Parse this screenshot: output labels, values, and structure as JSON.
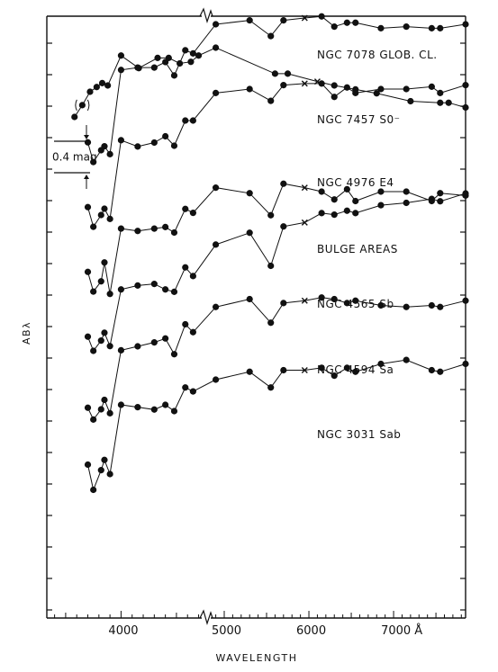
{
  "chart_data": {
    "type": "line",
    "xlabel": "WAVELENGTH",
    "ylabel": "ABλ",
    "xlim": [
      3300,
      7700
    ],
    "x_ticks": [
      {
        "value": 4000,
        "label": "4000"
      },
      {
        "value": 5000,
        "label": "5000"
      },
      {
        "value": 6000,
        "label": "6000"
      },
      {
        "value": 7000,
        "label": "7000 Å"
      }
    ],
    "x_axis_break": [
      4700,
      4850
    ],
    "scale_bar": {
      "label": "0.4 mag",
      "mag": 0.4
    },
    "marker_note": "x marks a point plotted as a cross; (•) marks a parenthesised point",
    "series": [
      {
        "name": "NGC 7078 GLOB. CL.",
        "offset": 0,
        "points": [
          [
            3580,
            3.0,
            "dot"
          ],
          [
            3650,
            2.85,
            "paren"
          ],
          [
            3720,
            2.68,
            "dot"
          ],
          [
            3780,
            2.62,
            "dot"
          ],
          [
            3830,
            2.57,
            "dot"
          ],
          [
            3880,
            2.6,
            "dot"
          ],
          [
            4000,
            2.22,
            "dot"
          ],
          [
            4160,
            2.38,
            "dot"
          ],
          [
            4330,
            2.25,
            "dot"
          ],
          [
            4430,
            2.25,
            "dot"
          ],
          [
            4530,
            2.32,
            "dot"
          ],
          [
            4630,
            2.3,
            "dot"
          ],
          [
            4700,
            2.22,
            "dot"
          ],
          [
            4900,
            2.12,
            "dot"
          ],
          [
            5600,
            2.45,
            "dot"
          ],
          [
            5750,
            2.45,
            "dot"
          ],
          [
            6100,
            2.55,
            "cross"
          ],
          [
            6300,
            2.6,
            "dot"
          ],
          [
            6550,
            2.65,
            "dot"
          ],
          [
            6800,
            2.7,
            "dot"
          ],
          [
            7200,
            2.8,
            "dot"
          ],
          [
            7550,
            2.82,
            "dot"
          ],
          [
            7650,
            2.82,
            "dot"
          ],
          [
            7850,
            2.88,
            "dot"
          ]
        ]
      },
      {
        "name": "NGC 7457 S0⁻",
        "offset": 1,
        "points": [
          [
            3700,
            2.5,
            "dot"
          ],
          [
            3750,
            2.75,
            "dot"
          ],
          [
            3820,
            2.6,
            "dot"
          ],
          [
            3850,
            2.55,
            "dot"
          ],
          [
            3900,
            2.65,
            "dot"
          ],
          [
            4000,
            1.58,
            "dot"
          ],
          [
            4150,
            1.55,
            "dot"
          ],
          [
            4300,
            1.55,
            "dot"
          ],
          [
            4400,
            1.48,
            "dot"
          ],
          [
            4480,
            1.65,
            "dot"
          ],
          [
            4580,
            1.33,
            "dot"
          ],
          [
            4650,
            1.37,
            "dot"
          ],
          [
            4900,
            1.0,
            "dot"
          ],
          [
            5300,
            0.95,
            "dot"
          ],
          [
            5550,
            1.15,
            "dot"
          ],
          [
            5700,
            0.95,
            "dot"
          ],
          [
            5950,
            0.92,
            "cross"
          ],
          [
            6150,
            0.9,
            "dot"
          ],
          [
            6300,
            1.03,
            "dot"
          ],
          [
            6450,
            0.98,
            "dot"
          ],
          [
            6550,
            0.98,
            "dot"
          ],
          [
            6850,
            1.05,
            "dot"
          ],
          [
            7150,
            1.03,
            "dot"
          ],
          [
            7450,
            1.05,
            "dot"
          ],
          [
            7550,
            1.05,
            "dot"
          ],
          [
            7850,
            1.0,
            "dot"
          ]
        ]
      },
      {
        "name": "NGC 4976 E4",
        "offset": 2,
        "points": [
          [
            3700,
            2.5,
            "dot"
          ],
          [
            3750,
            2.75,
            "dot"
          ],
          [
            3820,
            2.6,
            "dot"
          ],
          [
            3850,
            2.52,
            "dot"
          ],
          [
            3900,
            2.65,
            "dot"
          ],
          [
            4000,
            1.65,
            "dot"
          ],
          [
            4150,
            1.73,
            "dot"
          ],
          [
            4300,
            1.68,
            "dot"
          ],
          [
            4400,
            1.6,
            "dot"
          ],
          [
            4480,
            1.72,
            "dot"
          ],
          [
            4580,
            1.4,
            "dot"
          ],
          [
            4650,
            1.4,
            "dot"
          ],
          [
            4900,
            1.05,
            "dot"
          ],
          [
            5300,
            1.0,
            "dot"
          ],
          [
            5550,
            1.15,
            "dot"
          ],
          [
            5700,
            0.95,
            "dot"
          ],
          [
            5950,
            0.93,
            "cross"
          ],
          [
            6150,
            0.93,
            "dot"
          ],
          [
            6300,
            1.1,
            "dot"
          ],
          [
            6450,
            0.98,
            "dot"
          ],
          [
            6550,
            1.05,
            "dot"
          ],
          [
            6850,
            1.0,
            "dot"
          ],
          [
            7150,
            1.0,
            "dot"
          ],
          [
            7450,
            0.97,
            "dot"
          ],
          [
            7550,
            1.05,
            "dot"
          ],
          [
            7850,
            0.95,
            "dot"
          ]
        ]
      },
      {
        "name": "BULGE AREAS",
        "offset": 3,
        "points": [
          [
            3700,
            2.5,
            "dot"
          ],
          [
            3750,
            2.75,
            "dot"
          ],
          [
            3820,
            2.62,
            "dot"
          ],
          [
            3850,
            2.38,
            "dot"
          ],
          [
            3900,
            2.78,
            "dot"
          ],
          [
            4000,
            1.95,
            "dot"
          ],
          [
            4150,
            1.98,
            "dot"
          ],
          [
            4300,
            1.95,
            "dot"
          ],
          [
            4400,
            1.93,
            "dot"
          ],
          [
            4480,
            2.0,
            "dot"
          ],
          [
            4580,
            1.7,
            "dot"
          ],
          [
            4650,
            1.75,
            "dot"
          ],
          [
            4900,
            1.43,
            "dot"
          ],
          [
            5300,
            1.5,
            "dot"
          ],
          [
            5550,
            1.78,
            "dot"
          ],
          [
            5700,
            1.38,
            "dot"
          ],
          [
            5950,
            1.43,
            "cross"
          ],
          [
            6150,
            1.48,
            "dot"
          ],
          [
            6300,
            1.58,
            "dot"
          ],
          [
            6450,
            1.45,
            "dot"
          ],
          [
            6550,
            1.6,
            "dot"
          ],
          [
            6850,
            1.48,
            "dot"
          ],
          [
            7150,
            1.48,
            "dot"
          ],
          [
            7450,
            1.6,
            "dot"
          ],
          [
            7550,
            1.5,
            "dot"
          ],
          [
            7850,
            1.53,
            "dot"
          ]
        ]
      },
      {
        "name": "NGC 4565 Sb",
        "offset": 4,
        "points": [
          [
            3700,
            2.5,
            "dot"
          ],
          [
            3750,
            2.68,
            "dot"
          ],
          [
            3820,
            2.55,
            "dot"
          ],
          [
            3850,
            2.45,
            "dot"
          ],
          [
            3900,
            2.62,
            "dot"
          ],
          [
            4000,
            1.9,
            "dot"
          ],
          [
            4150,
            1.85,
            "dot"
          ],
          [
            4300,
            1.83,
            "dot"
          ],
          [
            4400,
            1.9,
            "dot"
          ],
          [
            4480,
            1.93,
            "dot"
          ],
          [
            4580,
            1.62,
            "dot"
          ],
          [
            4650,
            1.73,
            "dot"
          ],
          [
            4900,
            1.33,
            "dot"
          ],
          [
            5300,
            1.18,
            "dot"
          ],
          [
            5550,
            1.6,
            "dot"
          ],
          [
            5700,
            1.1,
            "dot"
          ],
          [
            5950,
            1.05,
            "cross"
          ],
          [
            6150,
            0.93,
            "dot"
          ],
          [
            6300,
            0.95,
            "dot"
          ],
          [
            6450,
            0.9,
            "dot"
          ],
          [
            6550,
            0.93,
            "dot"
          ],
          [
            6850,
            0.83,
            "dot"
          ],
          [
            7150,
            0.8,
            "dot"
          ],
          [
            7450,
            0.75,
            "dot"
          ],
          [
            7550,
            0.78,
            "dot"
          ],
          [
            7850,
            0.68,
            "dot"
          ]
        ]
      },
      {
        "name": "NGC 4594 Sa",
        "offset": 5,
        "points": [
          [
            3700,
            2.58,
            "dot"
          ],
          [
            3750,
            2.73,
            "dot"
          ],
          [
            3820,
            2.6,
            "dot"
          ],
          [
            3850,
            2.48,
            "dot"
          ],
          [
            3900,
            2.65,
            "dot"
          ],
          [
            4000,
            1.85,
            "dot"
          ],
          [
            4150,
            1.8,
            "dot"
          ],
          [
            4300,
            1.75,
            "dot"
          ],
          [
            4400,
            1.7,
            "dot"
          ],
          [
            4480,
            1.9,
            "dot"
          ],
          [
            4580,
            1.52,
            "dot"
          ],
          [
            4650,
            1.62,
            "dot"
          ],
          [
            4900,
            1.3,
            "dot"
          ],
          [
            5300,
            1.2,
            "dot"
          ],
          [
            5550,
            1.5,
            "dot"
          ],
          [
            5700,
            1.25,
            "dot"
          ],
          [
            5950,
            1.22,
            "cross"
          ],
          [
            6150,
            1.18,
            "dot"
          ],
          [
            6300,
            1.2,
            "dot"
          ],
          [
            6450,
            1.25,
            "dot"
          ],
          [
            6550,
            1.22,
            "dot"
          ],
          [
            6850,
            1.28,
            "dot"
          ],
          [
            7150,
            1.3,
            "dot"
          ],
          [
            7450,
            1.28,
            "dot"
          ],
          [
            7550,
            1.3,
            "dot"
          ],
          [
            7850,
            1.22,
            "dot"
          ]
        ]
      },
      {
        "name": "NGC 3031 Sab",
        "offset": 6,
        "points": [
          [
            3700,
            2.48,
            "dot"
          ],
          [
            3750,
            2.8,
            "dot"
          ],
          [
            3820,
            2.55,
            "dot"
          ],
          [
            3850,
            2.42,
            "dot"
          ],
          [
            3900,
            2.6,
            "dot"
          ],
          [
            4000,
            1.72,
            "dot"
          ],
          [
            4150,
            1.75,
            "dot"
          ],
          [
            4300,
            1.78,
            "dot"
          ],
          [
            4400,
            1.72,
            "dot"
          ],
          [
            4480,
            1.8,
            "dot"
          ],
          [
            4580,
            1.5,
            "dot"
          ],
          [
            4650,
            1.55,
            "dot"
          ],
          [
            4900,
            1.4,
            "dot"
          ],
          [
            5300,
            1.3,
            "dot"
          ],
          [
            5550,
            1.5,
            "dot"
          ],
          [
            5700,
            1.28,
            "dot"
          ],
          [
            5950,
            1.28,
            "cross"
          ],
          [
            6150,
            1.25,
            "dot"
          ],
          [
            6300,
            1.35,
            "dot"
          ],
          [
            6450,
            1.25,
            "dot"
          ],
          [
            6550,
            1.3,
            "dot"
          ],
          [
            6850,
            1.2,
            "dot"
          ],
          [
            7150,
            1.15,
            "dot"
          ],
          [
            7450,
            1.28,
            "dot"
          ],
          [
            7550,
            1.3,
            "dot"
          ],
          [
            7850,
            1.2,
            "dot"
          ]
        ]
      }
    ]
  }
}
